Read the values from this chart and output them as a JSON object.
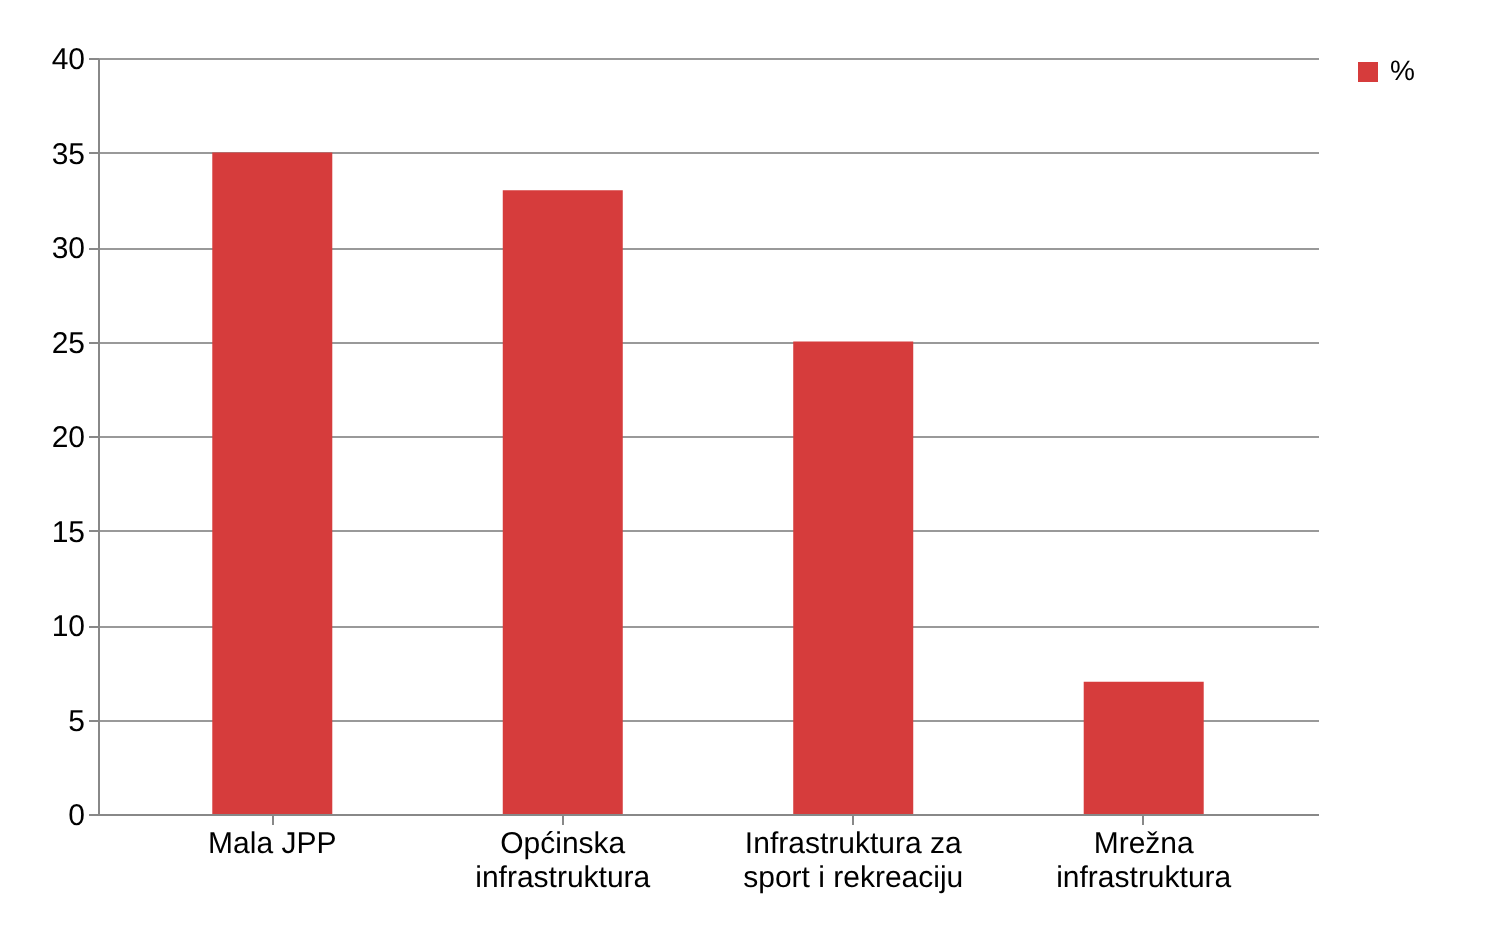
{
  "chart_data": {
    "type": "bar",
    "categories": [
      "Mala JPP",
      "Općinska infrastruktura",
      "Infrastruktura za sport i rekreaciju",
      "Mrežna infrastruktura"
    ],
    "series": [
      {
        "name": "%",
        "color": "#d63c3c",
        "values": [
          35,
          33,
          25,
          7
        ]
      }
    ],
    "ylim": [
      0,
      40
    ],
    "yticks": [
      0,
      5,
      10,
      15,
      20,
      25,
      30,
      35,
      40
    ],
    "grid": "y",
    "legend": "right"
  }
}
